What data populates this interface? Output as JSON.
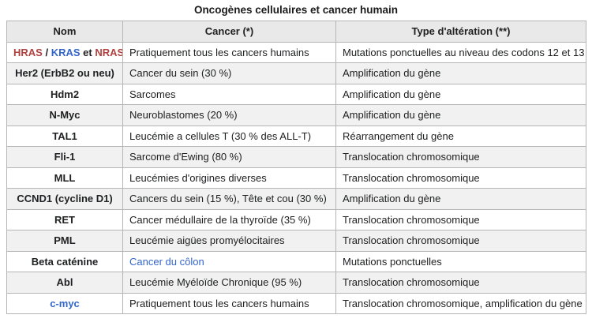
{
  "title": "Oncogènes cellulaires et cancer humain",
  "colors": {
    "link_blue": "#3366cc",
    "gene_red": "#b0413e",
    "header_bg": "#e9e9e9",
    "stripe_bg": "#f1f1f1",
    "border": "#b5b5b5",
    "text": "#202122"
  },
  "table": {
    "headers": [
      "Nom",
      "Cancer (*)",
      "Type d'altération (**)"
    ],
    "rows": [
      {
        "nom": {
          "segments": [
            {
              "text": "HRAS",
              "color": "#b0413e",
              "link": true,
              "name": "link-hras"
            },
            {
              "text": " / "
            },
            {
              "text": "KRAS",
              "color": "#3366cc",
              "link": true,
              "name": "link-kras"
            },
            {
              "text": " et "
            },
            {
              "text": "NRAS",
              "color": "#b0413e",
              "link": true,
              "name": "link-nras"
            }
          ]
        },
        "cancer": "Pratiquement tous les cancers humains",
        "alteration": "Mutations ponctuelles au niveau des codons 12 et 13"
      },
      {
        "nom": "Her2 (ErbB2 ou neu)",
        "cancer": "Cancer du sein (30 %)",
        "alteration": "Amplification du gène"
      },
      {
        "nom": "Hdm2",
        "cancer": "Sarcomes",
        "alteration": "Amplification du gène"
      },
      {
        "nom": "N-Myc",
        "cancer": "Neuroblastomes (20 %)",
        "alteration": "Amplification du gène"
      },
      {
        "nom": "TAL1",
        "cancer": "Leucémie a cellules T (30 % des ALL-T)",
        "alteration": "Réarrangement du gène"
      },
      {
        "nom": "Fli-1",
        "cancer": "Sarcome d'Ewing (80 %)",
        "alteration": "Translocation chromosomique"
      },
      {
        "nom": "MLL",
        "cancer": "Leucémies d'origines diverses",
        "alteration": "Translocation chromosomique"
      },
      {
        "nom": "CCND1 (cycline D1)",
        "cancer": "Cancers du sein (15 %), Tête et cou (30 %)",
        "alteration": "Amplification du gène"
      },
      {
        "nom": "RET",
        "cancer": "Cancer médullaire de la thyroïde (35 %)",
        "alteration": "Translocation chromosomique"
      },
      {
        "nom": "PML",
        "cancer": "Leucémie aigües promyélocitaires",
        "alteration": "Translocation chromosomique"
      },
      {
        "nom": "Beta caténine",
        "cancer": {
          "text": "Cancer du côlon",
          "color": "#3366cc",
          "link": true,
          "name": "link-cancer-du-colon"
        },
        "alteration": "Mutations ponctuelles"
      },
      {
        "nom": "Abl",
        "cancer": "Leucémie Myéloïde Chronique (95 %)",
        "alteration": "Translocation chromosomique"
      },
      {
        "nom": {
          "text": "c-myc",
          "color": "#3366cc",
          "link": true,
          "name": "link-c-myc"
        },
        "cancer": "Pratiquement tous les cancers humains",
        "alteration": "Translocation chromosomique, amplification du gène"
      }
    ]
  }
}
